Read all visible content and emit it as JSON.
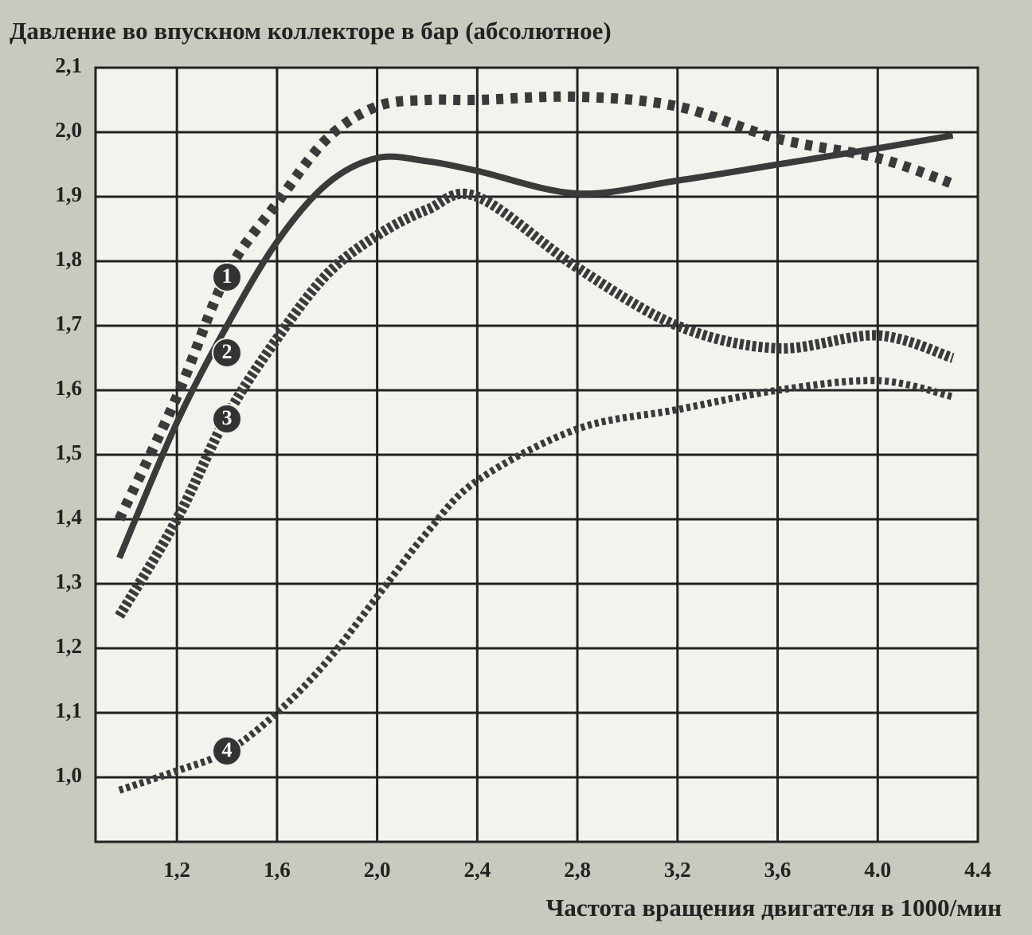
{
  "chart_data": {
    "type": "line",
    "title": "Давление во впускном коллекторе в бар (абсолютное)",
    "x_label": "Частота вращения двигателя в 1000/мин",
    "x": [
      0.97,
      1.2,
      1.4,
      1.6,
      1.8,
      2.0,
      2.2,
      2.4,
      2.8,
      3.2,
      3.6,
      4.0,
      4.3
    ],
    "series": [
      {
        "name": "1",
        "color": "#3a3a3a",
        "values": [
          1.4,
          1.59,
          1.78,
          1.89,
          1.99,
          2.04,
          2.05,
          2.05,
          2.055,
          2.04,
          1.99,
          1.96,
          1.92
        ]
      },
      {
        "name": "2",
        "color": "#3a3a3a",
        "values": [
          1.34,
          1.55,
          1.7,
          1.83,
          1.92,
          1.96,
          1.955,
          1.94,
          1.905,
          1.925,
          1.95,
          1.975,
          1.995
        ]
      },
      {
        "name": "3",
        "color": "#3a3a3a",
        "values": [
          1.25,
          1.4,
          1.56,
          1.68,
          1.78,
          1.84,
          1.88,
          1.9,
          1.79,
          1.7,
          1.665,
          1.685,
          1.65
        ]
      },
      {
        "name": "4",
        "color": "#3a3a3a",
        "values": [
          0.98,
          1.01,
          1.04,
          1.1,
          1.18,
          1.28,
          1.38,
          1.46,
          1.54,
          1.57,
          1.6,
          1.615,
          1.59
        ]
      }
    ],
    "xlim": [
      0.875,
      4.4
    ],
    "xticks": [
      {
        "value": 1.2,
        "label": "1,2"
      },
      {
        "value": 1.6,
        "label": "1,6"
      },
      {
        "value": 2.0,
        "label": "2,0"
      },
      {
        "value": 2.4,
        "label": "2,4"
      },
      {
        "value": 2.8,
        "label": "2,8"
      },
      {
        "value": 3.2,
        "label": "3,2"
      },
      {
        "value": 3.6,
        "label": "3,6"
      },
      {
        "value": 4.0,
        "label": "4.0"
      },
      {
        "value": 4.4,
        "label": "4.4"
      }
    ],
    "ylim": [
      0.9,
      2.1
    ],
    "yticks": [
      {
        "value": 1.0,
        "label": "1,0"
      },
      {
        "value": 1.1,
        "label": "1,1"
      },
      {
        "value": 1.2,
        "label": "1,2"
      },
      {
        "value": 1.3,
        "label": "1,3"
      },
      {
        "value": 1.4,
        "label": "1,4"
      },
      {
        "value": 1.5,
        "label": "1,5"
      },
      {
        "value": 1.6,
        "label": "1,6"
      },
      {
        "value": 1.7,
        "label": "1,7"
      },
      {
        "value": 1.8,
        "label": "1,8"
      },
      {
        "value": 1.9,
        "label": "1,9"
      },
      {
        "value": 2.0,
        "label": "2,0"
      },
      {
        "value": 2.1,
        "label": "2,1"
      }
    ],
    "grid": true
  }
}
